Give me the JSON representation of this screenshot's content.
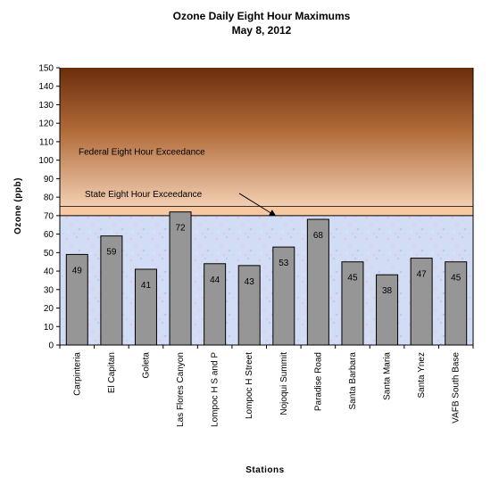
{
  "chart_data": {
    "type": "bar",
    "title": "Ozone Daily Eight Hour Maximums",
    "subtitle": "May 8, 2012",
    "xlabel": "Stations",
    "ylabel": "Ozone (ppb)",
    "ylim": [
      0,
      150
    ],
    "yticks": [
      0,
      10,
      20,
      30,
      40,
      50,
      60,
      70,
      80,
      90,
      100,
      110,
      120,
      130,
      140,
      150
    ],
    "categories": [
      "Carpinteria",
      "El Capitan",
      "Goleta",
      "Las Flores Canyon",
      "Lompoc H S and P",
      "Lompoc H Street",
      "Nojoqui Summit",
      "Paradise Road",
      "Santa Barbara",
      "Santa Maria",
      "Santa Ynez",
      "VAFB South Base"
    ],
    "values": [
      49,
      59,
      41,
      72,
      44,
      43,
      53,
      68,
      45,
      38,
      47,
      45
    ],
    "thresholds": [
      {
        "label": "Federal Eight Hour Exceedance",
        "value": 75
      },
      {
        "label": "State Eight Hour Exceedance",
        "value": 70
      }
    ],
    "colors": {
      "bar": "#969696",
      "federal_top": "#6b2d0c",
      "federal_bottom": "#f0c8a8",
      "state_band": "#f8c8a0",
      "lower_area": "#cfd9f5"
    }
  }
}
